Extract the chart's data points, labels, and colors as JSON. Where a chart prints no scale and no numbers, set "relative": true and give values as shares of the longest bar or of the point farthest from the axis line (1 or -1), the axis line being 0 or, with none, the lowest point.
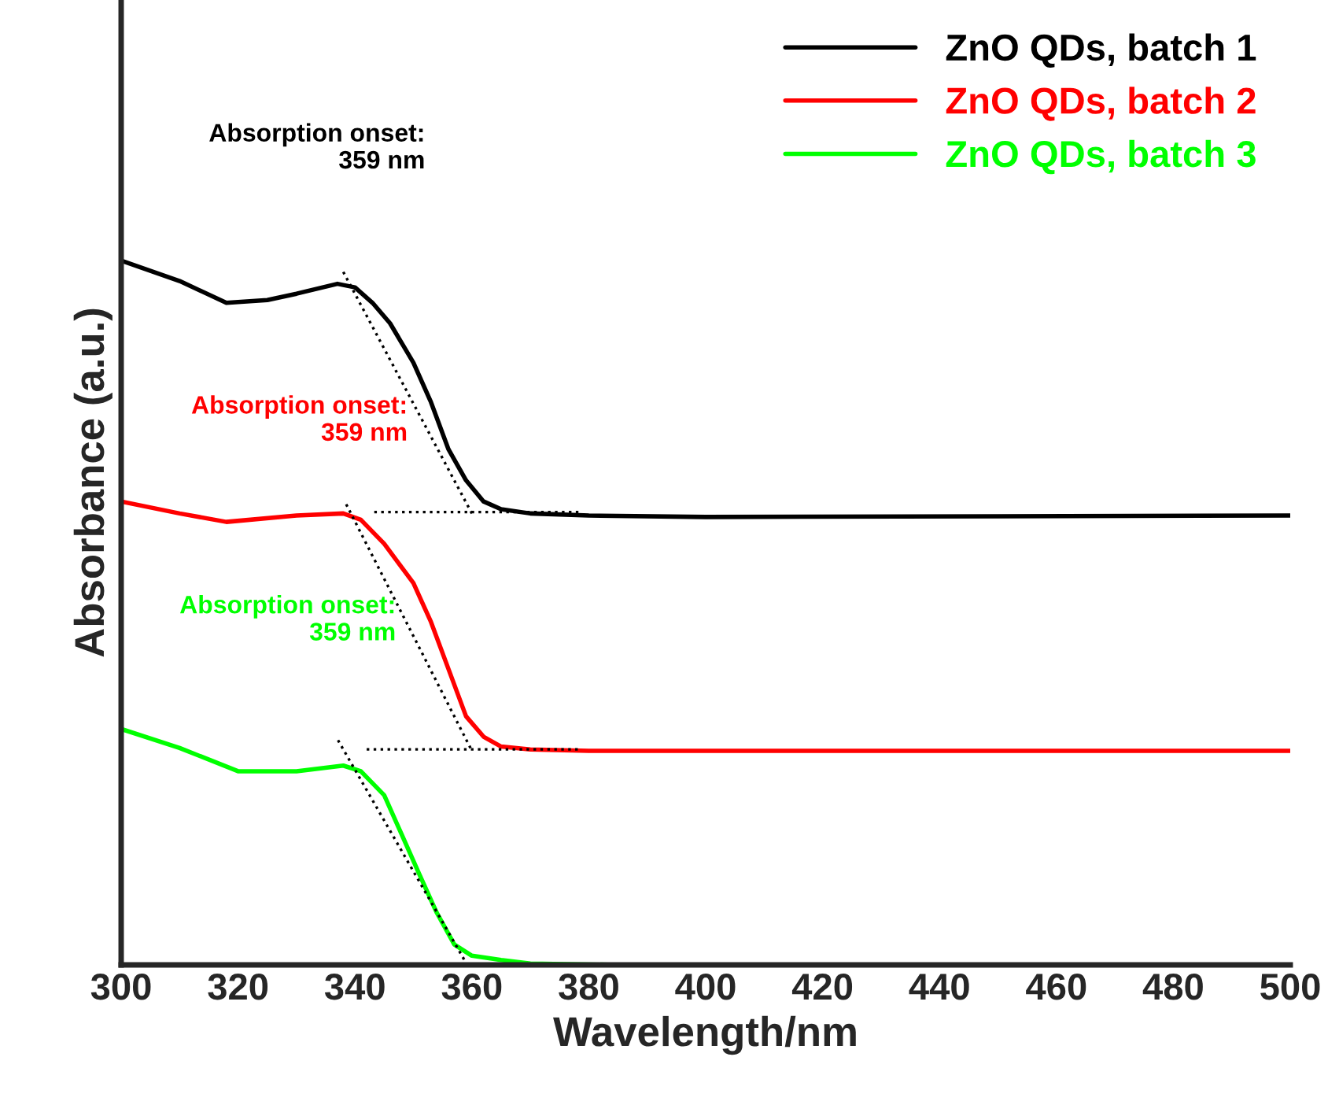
{
  "chart_data": {
    "type": "line",
    "xlabel": "Wavelength/nm",
    "ylabel": "Absorbance (a.u.)",
    "relative": true,
    "xlim": [
      300,
      500
    ],
    "xticks": [
      300,
      320,
      340,
      360,
      380,
      400,
      420,
      440,
      460,
      480,
      500
    ],
    "legend": "top right",
    "grid": false,
    "series": [
      {
        "name": "ZnO QDs, batch 1",
        "color": "#000000",
        "x": [
          300,
          310,
          318,
          325,
          330,
          337,
          340,
          343,
          346,
          350,
          353,
          356,
          359,
          362,
          365,
          370,
          380,
          400,
          500
        ],
        "values": [
          1.0,
          0.971,
          0.94,
          0.944,
          0.953,
          0.967,
          0.962,
          0.94,
          0.911,
          0.855,
          0.799,
          0.732,
          0.688,
          0.658,
          0.647,
          0.641,
          0.638,
          0.636,
          0.638
        ]
      },
      {
        "name": "ZnO QDs, batch 2",
        "color": "#ff0000",
        "x": [
          300,
          310,
          318,
          330,
          338,
          341,
          345,
          350,
          353,
          356,
          359,
          362,
          365,
          370,
          380,
          500
        ],
        "values": [
          0.658,
          0.641,
          0.629,
          0.638,
          0.641,
          0.632,
          0.598,
          0.542,
          0.487,
          0.42,
          0.353,
          0.324,
          0.31,
          0.306,
          0.304,
          0.304
        ]
      },
      {
        "name": "ZnO QDs, batch 3",
        "color": "#00ff00",
        "x": [
          300,
          310,
          320,
          330,
          338,
          341,
          345,
          348,
          351,
          354,
          357,
          360,
          365,
          370,
          385
        ],
        "values": [
          0.335,
          0.308,
          0.275,
          0.275,
          0.283,
          0.275,
          0.241,
          0.185,
          0.129,
          0.074,
          0.029,
          0.013,
          0.007,
          0.002,
          0.0
        ]
      },
      {
        "type": "line",
        "color": "#000000",
        "line_style": "dotted",
        "x": [
          338.0,
          360.0
        ],
        "values": [
          0.984,
          0.641
        ]
      },
      {
        "type": "line",
        "color": "#000000",
        "line_style": "dotted",
        "x": [
          343.3,
          378.9
        ],
        "values": [
          0.643,
          0.643
        ]
      },
      {
        "type": "line",
        "color": "#000000",
        "line_style": "dotted",
        "x": [
          338.5,
          360.0
        ],
        "values": [
          0.654,
          0.304
        ]
      },
      {
        "type": "line",
        "color": "#000000",
        "line_style": "dotted",
        "x": [
          342.0,
          378.3
        ],
        "values": [
          0.306,
          0.306
        ]
      },
      {
        "type": "line",
        "color": "#000000",
        "line_style": "dotted",
        "x": [
          337.1,
          359.2
        ],
        "values": [
          0.319,
          0.0
        ]
      }
    ],
    "annotations": [
      "Absorption onset:\n359 nm",
      "Absorption onset:\n359 nm",
      "Absorption onset:\n359 nm"
    ]
  }
}
